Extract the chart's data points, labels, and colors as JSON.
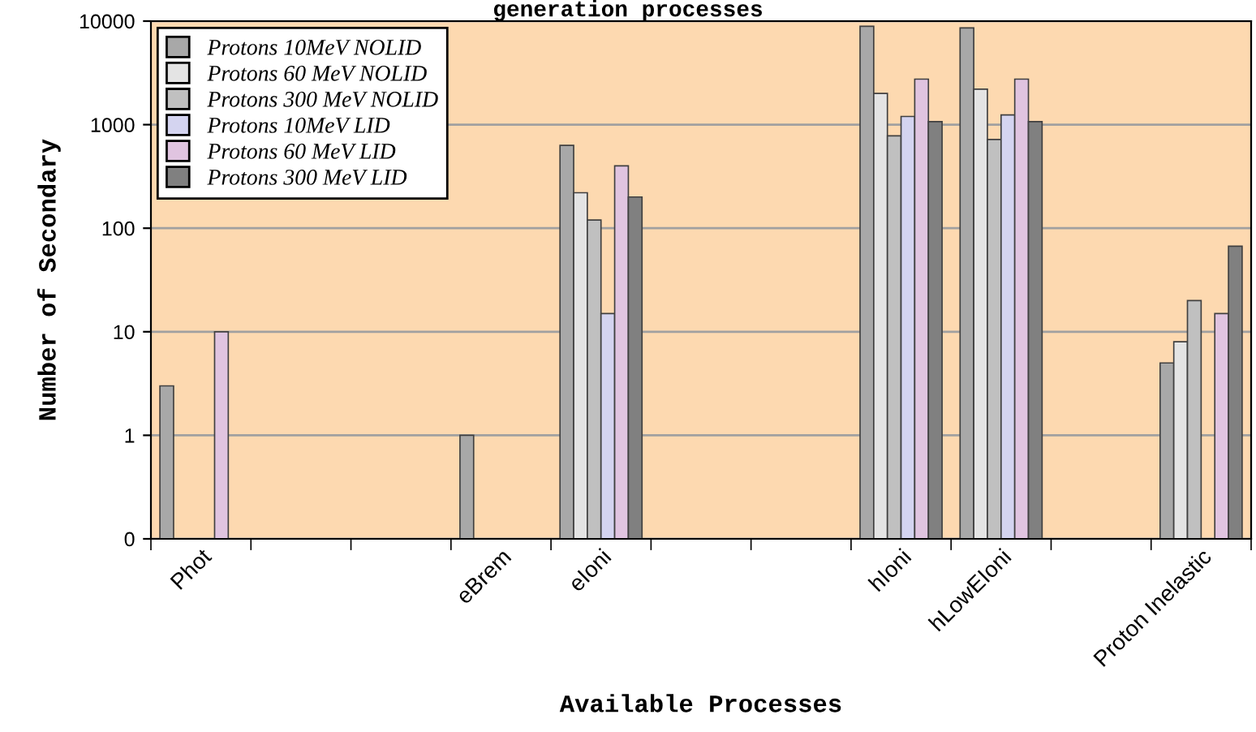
{
  "chart_data": {
    "type": "bar",
    "title": "generation processes",
    "xlabel": "Available Processes",
    "ylabel": "Number of Secondary",
    "categories": [
      "Phot",
      null,
      null,
      "eBrem",
      "eIoni",
      null,
      null,
      "hIoni",
      "hLowEIoni",
      null,
      "Proton Inelastic"
    ],
    "series": [
      {
        "name": "Protons 10MeV NOLID",
        "color": "#a8a8a8",
        "values": [
          3,
          null,
          null,
          1,
          630,
          null,
          null,
          8900,
          8600,
          null,
          5
        ]
      },
      {
        "name": "Protons 60 MeV NOLID",
        "color": "#e4e4e4",
        "values": [
          null,
          null,
          null,
          null,
          220,
          null,
          null,
          2000,
          2200,
          null,
          8
        ]
      },
      {
        "name": "Protons 300 MeV NOLID",
        "color": "#c0c0c0",
        "values": [
          null,
          null,
          null,
          null,
          120,
          null,
          null,
          780,
          720,
          null,
          20
        ]
      },
      {
        "name": "Protons 10MeV LID",
        "color": "#d4d4f0",
        "values": [
          null,
          null,
          null,
          null,
          15,
          null,
          null,
          1200,
          1240,
          null,
          null
        ]
      },
      {
        "name": "Protons 60 MeV LID",
        "color": "#e0c4e0",
        "values": [
          10,
          null,
          null,
          null,
          400,
          null,
          null,
          2750,
          2750,
          null,
          15
        ]
      },
      {
        "name": "Protons 300 MeV LID",
        "color": "#808080",
        "values": [
          null,
          null,
          null,
          null,
          200,
          null,
          null,
          1070,
          1070,
          null,
          67
        ]
      }
    ],
    "log": true,
    "ylim": [
      0.1,
      10000
    ],
    "yticks": [
      {
        "value": 0.1,
        "label": "0"
      },
      1,
      10,
      100,
      1000,
      10000
    ],
    "grid": "y",
    "legend": "top left"
  }
}
